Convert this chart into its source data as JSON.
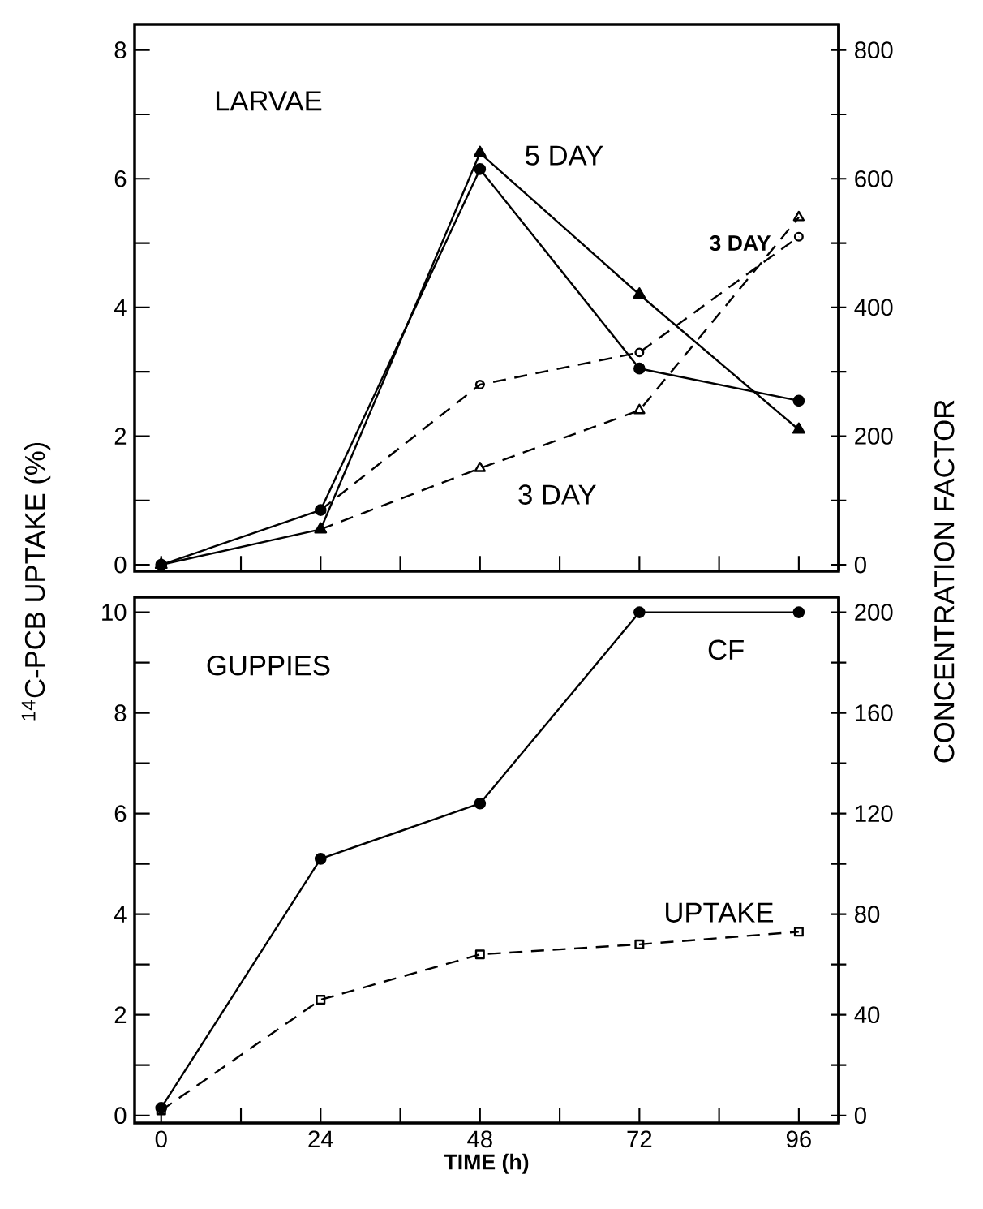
{
  "chart_data": [
    {
      "type": "line",
      "x": [
        0,
        24,
        48,
        72,
        96
      ],
      "xlim": [
        -4,
        102
      ],
      "xticks": [
        0,
        {
          "value": 12,
          "label": null
        },
        24,
        {
          "value": 36,
          "label": null
        },
        48,
        {
          "value": 60,
          "label": null
        },
        72,
        {
          "value": 84,
          "label": null
        },
        96
      ],
      "ylim": [
        -0.1,
        8.4
      ],
      "yticks": [
        0,
        {
          "value": 1,
          "label": null
        },
        2,
        {
          "value": 3,
          "label": null
        },
        4,
        {
          "value": 5,
          "label": null
        },
        6,
        {
          "value": 7,
          "label": null
        },
        8
      ],
      "y2lim": [
        -10,
        840
      ],
      "y2ticks": [
        0,
        {
          "value": 100,
          "label": null
        },
        200,
        {
          "value": 300,
          "label": null
        },
        400,
        {
          "value": 500,
          "label": null
        },
        600,
        {
          "value": 700,
          "label": null
        },
        800
      ],
      "tick_labels": "y",
      "series": [
        {
          "color": "#000000",
          "marker": "triangle",
          "line_style": "solid",
          "values": [
            0,
            0.55,
            6.4,
            4.2,
            2.1
          ]
        },
        {
          "color": "#000000",
          "marker": "triangle",
          "line_style": "dashed",
          "values": [
            null,
            0.55,
            1.5,
            2.4,
            5.4
          ]
        },
        {
          "color": "#000000",
          "marker": "circle",
          "line_style": "solid",
          "axis": "y2",
          "values": [
            0,
            85,
            615,
            305,
            255
          ]
        },
        {
          "color": "#000000",
          "marker": "circle",
          "line_style": "dashed",
          "axis": "y2",
          "values": [
            null,
            85,
            280,
            330,
            510
          ]
        }
      ],
      "annotations": [
        "LARVAE",
        "5 DAY",
        "3 DAY",
        "3 DAY"
      ]
    },
    {
      "type": "line",
      "x": [
        0,
        24,
        48,
        72,
        96
      ],
      "xlim": [
        -4,
        102
      ],
      "xticks": [
        0,
        {
          "value": 12,
          "label": null
        },
        24,
        {
          "value": 36,
          "label": null
        },
        48,
        {
          "value": 60,
          "label": null
        },
        72,
        {
          "value": 84,
          "label": null
        },
        96
      ],
      "ylim": [
        -0.15,
        10.3
      ],
      "yticks": [
        0,
        {
          "value": 1,
          "label": null
        },
        2,
        {
          "value": 3,
          "label": null
        },
        4,
        {
          "value": 5,
          "label": null
        },
        6,
        {
          "value": 7,
          "label": null
        },
        8,
        {
          "value": 9,
          "label": null
        },
        10
      ],
      "y2lim": [
        -3,
        206
      ],
      "y2ticks": [
        0,
        {
          "value": 20,
          "label": null
        },
        40,
        {
          "value": 60,
          "label": null
        },
        80,
        {
          "value": 100,
          "label": null
        },
        120,
        {
          "value": 140,
          "label": null
        },
        160,
        {
          "value": 180,
          "label": null
        },
        200
      ],
      "xlabel": "TIME (h)",
      "ylabel": "$^{14}$C-PCB UPTAKE (%)",
      "y2label": "CONCENTRATION FACTOR",
      "series": [
        {
          "color": "#000000",
          "marker": "circle",
          "line_style": "solid",
          "axis": "y2",
          "values": [
            3,
            102,
            124,
            200,
            200
          ]
        },
        {
          "color": "#000000",
          "marker": "square",
          "line_style": "dashed",
          "values": [
            0.1,
            2.3,
            3.2,
            3.4,
            3.65
          ]
        }
      ],
      "annotations": [
        "GUPPIES",
        "CF",
        "UPTAKE"
      ]
    }
  ]
}
